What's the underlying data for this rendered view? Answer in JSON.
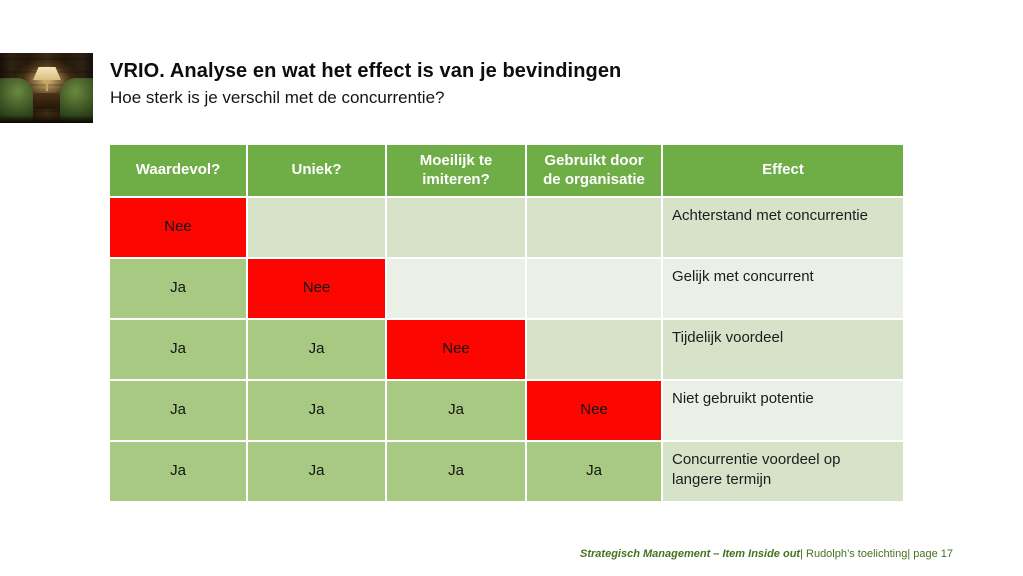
{
  "slide": {
    "title": "VRIO. Analyse en wat het effect is van je bevindingen",
    "subtitle": "Hoe sterk is je verschil met de concurrentie?"
  },
  "thumbnail": {
    "description": "lounge-photo-green-armchairs-lamp"
  },
  "table": {
    "headers": [
      "Waardevol?",
      "Uniek?",
      "Moeilijk te imiteren?",
      "Gebruikt door de organisatie",
      "Effect"
    ],
    "rows": [
      {
        "cells": [
          "Nee",
          "",
          "",
          ""
        ],
        "effect": "Achterstand met concurrentie"
      },
      {
        "cells": [
          "Ja",
          "Nee",
          "",
          ""
        ],
        "effect": "Gelijk met concurrent"
      },
      {
        "cells": [
          "Ja",
          "Ja",
          "Nee",
          ""
        ],
        "effect": "Tijdelijk voordeel"
      },
      {
        "cells": [
          "Ja",
          "Ja",
          "Ja",
          "Nee"
        ],
        "effect": "Niet gebruikt potentie"
      },
      {
        "cells": [
          "Ja",
          "Ja",
          "Ja",
          "Ja"
        ],
        "effect": "Concurrentie voordeel op langere termijn"
      }
    ]
  },
  "footer": {
    "course": "Strategisch Management – Item Inside out",
    "rest": "| Rudolph’s toelichting| page 17"
  },
  "colors": {
    "header_green": "#6fad47",
    "ja_green": "#a8c982",
    "nee_red": "#fb0600",
    "band_light": "#d6e3c9",
    "band_lighter": "#eaf0e5",
    "footer_green": "#46711f"
  }
}
